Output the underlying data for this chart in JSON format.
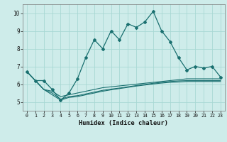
{
  "xlabel": "Humidex (Indice chaleur)",
  "bg_color": "#ceecea",
  "grid_color": "#a8d8d4",
  "line_color": "#1a7070",
  "xlim": [
    -0.5,
    23.5
  ],
  "ylim": [
    4.5,
    10.5
  ],
  "xticks": [
    0,
    1,
    2,
    3,
    4,
    5,
    6,
    7,
    8,
    9,
    10,
    11,
    12,
    13,
    14,
    15,
    16,
    17,
    18,
    19,
    20,
    21,
    22,
    23
  ],
  "yticks": [
    5,
    6,
    7,
    8,
    9,
    10
  ],
  "main_y": [
    6.7,
    6.2,
    6.2,
    5.7,
    5.1,
    5.5,
    6.3,
    7.5,
    8.5,
    8.0,
    9.0,
    8.5,
    9.4,
    9.2,
    9.5,
    10.1,
    9.0,
    8.4,
    7.5,
    6.8,
    7.0,
    6.9,
    7.0,
    6.4
  ],
  "line1_y": [
    6.7,
    6.2,
    5.7,
    5.6,
    5.3,
    5.4,
    5.5,
    5.6,
    5.7,
    5.8,
    5.85,
    5.9,
    5.95,
    6.0,
    6.05,
    6.1,
    6.15,
    6.2,
    6.25,
    6.3,
    6.3,
    6.3,
    6.3,
    6.3
  ],
  "line2_y": [
    6.7,
    6.2,
    5.7,
    5.5,
    5.15,
    5.3,
    5.35,
    5.45,
    5.55,
    5.65,
    5.72,
    5.78,
    5.85,
    5.92,
    5.98,
    6.05,
    6.1,
    6.15,
    6.18,
    6.2,
    6.2,
    6.2,
    6.2,
    6.2
  ],
  "line3_y": [
    6.7,
    6.2,
    5.7,
    5.4,
    5.1,
    5.25,
    5.3,
    5.4,
    5.5,
    5.6,
    5.68,
    5.75,
    5.82,
    5.89,
    5.95,
    6.01,
    6.06,
    6.1,
    6.12,
    6.15,
    6.15,
    6.15,
    6.15,
    6.15
  ]
}
